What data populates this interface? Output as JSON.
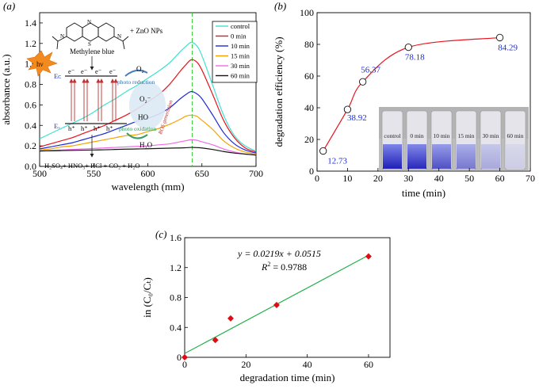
{
  "panels": {
    "a": {
      "label": "(a)"
    },
    "b": {
      "label": "(b)"
    },
    "c": {
      "label": "(c)"
    }
  },
  "colors": {
    "control": "#40e0d0",
    "0 min": "#e8141e",
    "10 min": "#1e2ad2",
    "15 min": "#f5a200",
    "30 min": "#ee6be5",
    "60 min": "#141414",
    "curve_b": "#e8141e",
    "fit_c": "#22b04b",
    "points_c": "#e00c14",
    "annot_blue": "#1c2ed6",
    "guide": "#3cc83c"
  },
  "inset_a": {
    "zno": "ZnO NPs",
    "mb": "Methylene blue",
    "hv": "hν",
    "ec": "Eᴄ",
    "ev": "Eᵥ",
    "electron": "e⁻",
    "hole": "h⁺",
    "o2": "O₂",
    "o2_radical": "O₂⁻",
    "ho_radical": "HO",
    "h2o": "H₂O",
    "photo_reduction": "photo reduction",
    "photo_oxidation": "photo oxidation",
    "ros": "ROS generation",
    "products": "H₂SO₄+ HNO₃+ HCl + CO₂ + H₂O"
  },
  "inset_b": {
    "vials": [
      "control",
      "0 min",
      "10 min",
      "15 min",
      "30 min",
      "60 min"
    ]
  },
  "fit_c": {
    "equation": "y = 0.0219x + 0.0515",
    "r2_label": "R",
    "r2_sup": "2",
    "r2_value": " = 0.9788"
  },
  "chart_data": [
    {
      "id": "a",
      "type": "line",
      "xlabel": "wavelength (mm)",
      "ylabel": "absorbance (a.u.)",
      "xlim": [
        500,
        700
      ],
      "ylim": [
        0,
        1.5
      ],
      "xticks": [
        500,
        550,
        600,
        650,
        700
      ],
      "yticks": [
        0.0,
        0.2,
        0.4,
        0.6,
        0.8,
        1.0,
        1.2,
        1.4
      ],
      "ytick_labels": [
        "0.0",
        "0.2",
        "0.4",
        "0.6",
        "0.8",
        "1.0",
        "1.2",
        "1.4"
      ],
      "peak_marker_x": 641,
      "legend": [
        "control",
        "0 min",
        "10 min",
        "15 min",
        "30 min",
        "60 min"
      ],
      "legend_position": "top-right",
      "series": [
        {
          "name": "control",
          "x": [
            500,
            510,
            520,
            530,
            540,
            550,
            560,
            570,
            580,
            590,
            600,
            610,
            620,
            630,
            635,
            640,
            645,
            650,
            660,
            670,
            680,
            690,
            700
          ],
          "values": [
            0.27,
            0.32,
            0.37,
            0.42,
            0.47,
            0.53,
            0.6,
            0.66,
            0.73,
            0.79,
            0.86,
            0.93,
            1.01,
            1.12,
            1.17,
            1.21,
            1.18,
            1.08,
            0.79,
            0.5,
            0.3,
            0.2,
            0.15
          ]
        },
        {
          "name": "0 min",
          "x": [
            500,
            510,
            520,
            530,
            540,
            550,
            560,
            570,
            580,
            590,
            600,
            610,
            620,
            630,
            635,
            640,
            645,
            650,
            660,
            670,
            680,
            690,
            700
          ],
          "values": [
            0.19,
            0.22,
            0.25,
            0.28,
            0.32,
            0.36,
            0.4,
            0.45,
            0.5,
            0.56,
            0.63,
            0.7,
            0.8,
            0.93,
            0.99,
            1.04,
            1.02,
            0.94,
            0.7,
            0.45,
            0.28,
            0.18,
            0.14
          ]
        },
        {
          "name": "10 min",
          "x": [
            500,
            510,
            520,
            530,
            540,
            550,
            560,
            570,
            580,
            590,
            600,
            610,
            620,
            630,
            635,
            640,
            645,
            650,
            660,
            670,
            680,
            690,
            700
          ],
          "values": [
            0.17,
            0.19,
            0.21,
            0.23,
            0.26,
            0.29,
            0.32,
            0.36,
            0.4,
            0.44,
            0.47,
            0.51,
            0.57,
            0.66,
            0.7,
            0.73,
            0.71,
            0.66,
            0.5,
            0.33,
            0.22,
            0.16,
            0.13
          ]
        },
        {
          "name": "15 min",
          "x": [
            500,
            510,
            520,
            530,
            540,
            550,
            560,
            570,
            580,
            590,
            600,
            610,
            620,
            630,
            635,
            640,
            645,
            650,
            660,
            670,
            680,
            690,
            700
          ],
          "values": [
            0.16,
            0.17,
            0.19,
            0.2,
            0.22,
            0.24,
            0.26,
            0.28,
            0.3,
            0.31,
            0.34,
            0.37,
            0.41,
            0.46,
            0.49,
            0.5,
            0.49,
            0.45,
            0.36,
            0.25,
            0.18,
            0.14,
            0.12
          ]
        },
        {
          "name": "30 min",
          "x": [
            500,
            510,
            520,
            530,
            540,
            550,
            560,
            570,
            580,
            590,
            600,
            610,
            620,
            630,
            635,
            640,
            645,
            650,
            660,
            670,
            680,
            690,
            700
          ],
          "values": [
            0.15,
            0.155,
            0.16,
            0.165,
            0.17,
            0.175,
            0.18,
            0.185,
            0.19,
            0.195,
            0.2,
            0.21,
            0.22,
            0.24,
            0.25,
            0.26,
            0.255,
            0.24,
            0.21,
            0.17,
            0.14,
            0.12,
            0.11
          ]
        },
        {
          "name": "60 min",
          "x": [
            500,
            510,
            520,
            530,
            540,
            550,
            560,
            570,
            580,
            590,
            600,
            610,
            620,
            630,
            635,
            640,
            645,
            650,
            660,
            670,
            680,
            690,
            700
          ],
          "values": [
            0.15,
            0.152,
            0.154,
            0.156,
            0.158,
            0.16,
            0.162,
            0.165,
            0.168,
            0.17,
            0.172,
            0.175,
            0.178,
            0.18,
            0.182,
            0.185,
            0.183,
            0.18,
            0.165,
            0.145,
            0.13,
            0.12,
            0.11
          ]
        }
      ]
    },
    {
      "id": "b",
      "type": "line",
      "xlabel": "time (min)",
      "ylabel": "degradation efficiency (%)",
      "xlim": [
        0,
        70
      ],
      "ylim": [
        0,
        100
      ],
      "xticks": [
        0,
        10,
        20,
        30,
        40,
        50,
        60,
        70
      ],
      "yticks": [
        0,
        20,
        40,
        60,
        80,
        100
      ],
      "series": [
        {
          "name": "degradation efficiency",
          "x": [
            2,
            10,
            15,
            30,
            60
          ],
          "values": [
            12.73,
            38.92,
            56.37,
            78.18,
            84.29
          ],
          "labels": [
            "12.73",
            "38.92",
            "56.37",
            "78.18",
            "84.29"
          ]
        }
      ]
    },
    {
      "id": "c",
      "type": "scatter",
      "xlabel": "degradation time (min)",
      "ylabel": "in (C₀/Cₜ)",
      "xlim": [
        0,
        67
      ],
      "ylim": [
        0,
        1.6
      ],
      "xticks": [
        0,
        20,
        40,
        60
      ],
      "yticks": [
        0,
        0.4,
        0.8,
        1.2,
        1.6
      ],
      "ytick_labels": [
        "0",
        "0.4",
        "0.8",
        "1.2",
        "1.6"
      ],
      "series": [
        {
          "name": "data",
          "x": [
            0,
            10,
            15,
            30,
            60
          ],
          "values": [
            0,
            0.23,
            0.52,
            0.7,
            1.35
          ]
        },
        {
          "name": "linear fit",
          "x": [
            0,
            60
          ],
          "values": [
            0.0515,
            1.3655
          ]
        }
      ]
    }
  ]
}
